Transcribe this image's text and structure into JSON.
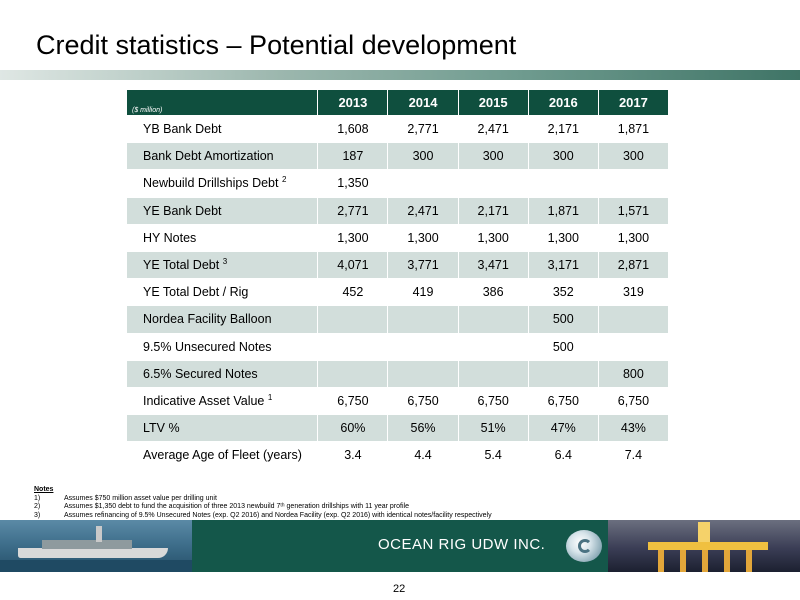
{
  "title": "Credit statistics – Potential development",
  "table": {
    "unit_label": "($ million)",
    "years": [
      "2013",
      "2014",
      "2015",
      "2016",
      "2017"
    ],
    "rows": [
      {
        "label": "YB Bank Debt",
        "sup": "",
        "values": [
          "1,608",
          "2,771",
          "2,471",
          "2,171",
          "1,871"
        ]
      },
      {
        "label": "Bank Debt Amortization",
        "sup": "",
        "values": [
          "187",
          "300",
          "300",
          "300",
          "300"
        ]
      },
      {
        "label": "Newbuild Drillships Debt",
        "sup": "2",
        "values": [
          "1,350",
          "",
          "",
          "",
          ""
        ]
      },
      {
        "label": "YE Bank Debt",
        "sup": "",
        "values": [
          "2,771",
          "2,471",
          "2,171",
          "1,871",
          "1,571"
        ]
      },
      {
        "label": "HY Notes",
        "sup": "",
        "values": [
          "1,300",
          "1,300",
          "1,300",
          "1,300",
          "1,300"
        ]
      },
      {
        "label": "YE Total Debt",
        "sup": "3",
        "values": [
          "4,071",
          "3,771",
          "3,471",
          "3,171",
          "2,871"
        ]
      },
      {
        "label": "YE Total Debt / Rig",
        "sup": "",
        "values": [
          "452",
          "419",
          "386",
          "352",
          "319"
        ]
      },
      {
        "label": "Nordea Facility Balloon",
        "sup": "",
        "values": [
          "",
          "",
          "",
          "500",
          ""
        ]
      },
      {
        "label": "9.5% Unsecured Notes",
        "sup": "",
        "values": [
          "",
          "",
          "",
          "500",
          ""
        ]
      },
      {
        "label": "6.5% Secured Notes",
        "sup": "",
        "values": [
          "",
          "",
          "",
          "",
          "800"
        ]
      },
      {
        "label": "Indicative Asset Value",
        "sup": "1",
        "values": [
          "6,750",
          "6,750",
          "6,750",
          "6,750",
          "6,750"
        ]
      },
      {
        "label": "LTV %",
        "sup": "",
        "values": [
          "60%",
          "56%",
          "51%",
          "47%",
          "43%"
        ]
      },
      {
        "label": "Average Age of Fleet (years)",
        "sup": "",
        "values": [
          "3.4",
          "4.4",
          "5.4",
          "6.4",
          "7.4"
        ]
      }
    ]
  },
  "notes": {
    "title": "Notes",
    "items": [
      {
        "num": "1)",
        "text": "Assumes  $750 million asset  value per drilling unit"
      },
      {
        "num": "2)",
        "text": "Assumes $1,350 debt to fund the acquisition of three 2013 newbuild 7ᵗʰ generation drillships with 11 year profile"
      },
      {
        "num": "3)",
        "text": "Assumes refinancing of 9.5% Unsecured Notes (exp. Q2 2016) and Nordea Facility (exp. Q2 2016) with identical notes/facility respectively"
      }
    ]
  },
  "footer": {
    "company": "OCEAN RIG UDW INC.",
    "band_color": "#14574a"
  },
  "page_number": "22",
  "colors": {
    "header_fill": "#0f4f3e",
    "row_shade": "#d2dedb"
  }
}
